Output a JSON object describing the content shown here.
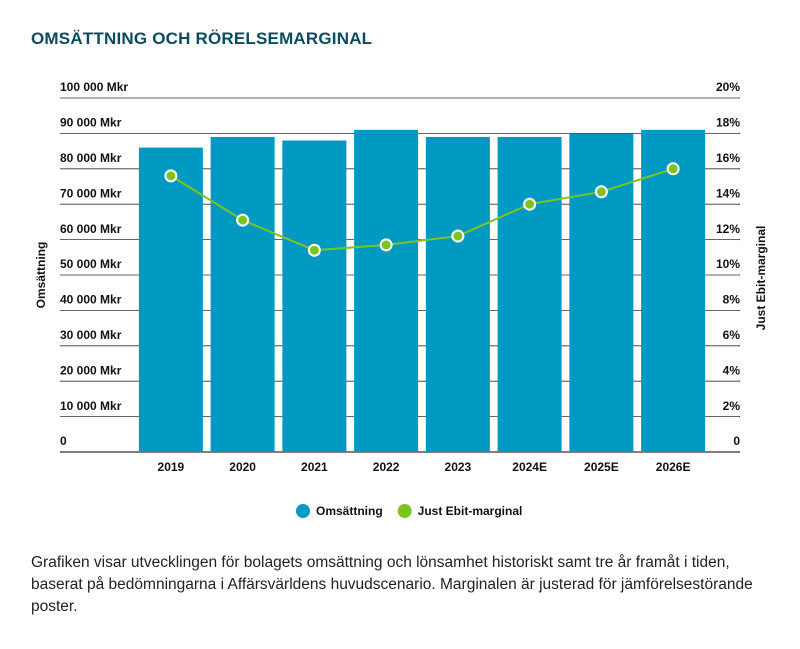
{
  "chart_data": {
    "type": "bar_line",
    "title": "OMSÄTTNING OCH RÖRELSEMARGINAL",
    "caption": "Grafiken visar utvecklingen för bolagets omsättning och lönsamhet historiskt samt tre år framåt i tiden, baserat på bedömningarna i Affärsvärldens huvudscenario. Marginalen är justerad för jämförelsestörande poster.",
    "ylabel": "Omsättning",
    "y2label": "Just Ebit-marginal",
    "categories": [
      "2019",
      "2020",
      "2021",
      "2022",
      "2023",
      "2024E",
      "2025E",
      "2026E"
    ],
    "series": [
      {
        "name": "Omsättning",
        "color": "#0099c2",
        "type": "bar",
        "values": [
          86000,
          89000,
          88000,
          91000,
          89000,
          89000,
          90000,
          91000
        ]
      },
      {
        "name": "Just Ebit-marginal",
        "color": "#7dc423",
        "type": "line",
        "axis": "y2",
        "values": [
          15.6,
          13.1,
          11.4,
          11.7,
          12.2,
          14.0,
          14.7,
          16.0
        ]
      }
    ],
    "ylim": [
      0,
      100000
    ],
    "yticks": [
      0,
      {
        "value": 10000,
        "label": "10 000 Mkr"
      },
      {
        "value": 20000,
        "label": "20 000 Mkr"
      },
      {
        "value": 30000,
        "label": "30 000 Mkr"
      },
      {
        "value": 40000,
        "label": "40 000 Mkr"
      },
      {
        "value": 50000,
        "label": "50 000 Mkr"
      },
      {
        "value": 60000,
        "label": "60 000 Mkr"
      },
      {
        "value": 70000,
        "label": "70 000 Mkr"
      },
      {
        "value": 80000,
        "label": "80 000 Mkr"
      },
      {
        "value": 90000,
        "label": "90 000 Mkr"
      },
      {
        "value": 100000,
        "label": "100 000 Mkr"
      }
    ],
    "y2lim": [
      0,
      20
    ],
    "y2ticks": [
      0,
      {
        "value": 2,
        "label": "2%"
      },
      {
        "value": 4,
        "label": "4%"
      },
      {
        "value": 6,
        "label": "6%"
      },
      {
        "value": 8,
        "label": "8%"
      },
      {
        "value": 10,
        "label": "10%"
      },
      {
        "value": 12,
        "label": "12%"
      },
      {
        "value": 14,
        "label": "14%"
      },
      {
        "value": 16,
        "label": "16%"
      },
      {
        "value": 18,
        "label": "18%"
      },
      {
        "value": 20,
        "label": "20%"
      }
    ],
    "grid": true
  }
}
